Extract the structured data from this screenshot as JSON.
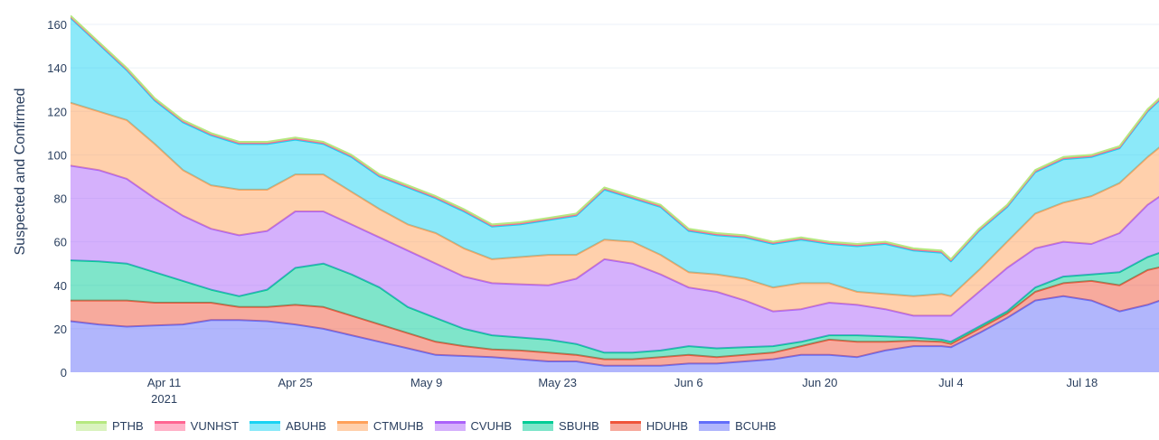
{
  "chart_data": {
    "type": "area",
    "stacked": true,
    "title": "",
    "xlabel": "",
    "ylabel": "Suspected and Confirmed",
    "ylim": [
      0,
      165
    ],
    "yticks": [
      0,
      20,
      40,
      60,
      80,
      100,
      120,
      140,
      160
    ],
    "xlim": [
      "2021-04-01",
      "2021-07-27"
    ],
    "xticks": [
      {
        "date": "2021-04-11",
        "label": "Apr 11",
        "sublabel": "2021"
      },
      {
        "date": "2021-04-25",
        "label": "Apr 25"
      },
      {
        "date": "2021-05-09",
        "label": "May 9"
      },
      {
        "date": "2021-05-23",
        "label": "May 23"
      },
      {
        "date": "2021-06-06",
        "label": "Jun 6"
      },
      {
        "date": "2021-06-20",
        "label": "Jun 20"
      },
      {
        "date": "2021-07-04",
        "label": "Jul 4"
      },
      {
        "date": "2021-07-18",
        "label": "Jul 18"
      }
    ],
    "grid": true,
    "legend_position": "bottom",
    "x": [
      "2021-04-01",
      "2021-04-04",
      "2021-04-07",
      "2021-04-10",
      "2021-04-13",
      "2021-04-16",
      "2021-04-19",
      "2021-04-22",
      "2021-04-25",
      "2021-04-28",
      "2021-05-01",
      "2021-05-04",
      "2021-05-07",
      "2021-05-10",
      "2021-05-13",
      "2021-05-16",
      "2021-05-19",
      "2021-05-22",
      "2021-05-25",
      "2021-05-28",
      "2021-05-31",
      "2021-06-03",
      "2021-06-06",
      "2021-06-09",
      "2021-06-12",
      "2021-06-15",
      "2021-06-18",
      "2021-06-21",
      "2021-06-24",
      "2021-06-27",
      "2021-06-30",
      "2021-07-03",
      "2021-07-04",
      "2021-07-07",
      "2021-07-10",
      "2021-07-13",
      "2021-07-16",
      "2021-07-19",
      "2021-07-22",
      "2021-07-25",
      "2021-07-27"
    ],
    "series": [
      {
        "name": "BCUHB",
        "color": "#636efa",
        "values": [
          23.5,
          22,
          21,
          21.5,
          22,
          24,
          24,
          23.5,
          22,
          20,
          17,
          14,
          11,
          8,
          7.5,
          7,
          6,
          5,
          5,
          3,
          3,
          3,
          4,
          4,
          5,
          6,
          8,
          8,
          7,
          10,
          12,
          12,
          11.5,
          18,
          25,
          33,
          35,
          33,
          28,
          31,
          34
        ]
      },
      {
        "name": "HDUHB",
        "color": "#EF553B",
        "values": [
          9.5,
          11,
          12,
          10.5,
          10,
          8,
          6,
          6.5,
          9,
          10,
          9,
          8,
          7,
          6,
          4.5,
          3.5,
          4,
          4,
          3,
          3,
          3,
          4,
          4,
          3,
          3,
          3,
          4,
          7,
          7,
          4,
          2.5,
          2,
          1.5,
          2,
          2,
          4,
          6,
          9,
          12,
          16,
          15
        ]
      },
      {
        "name": "SBUHB",
        "color": "#00cc96",
        "values": [
          18.5,
          18,
          17,
          14,
          10,
          6,
          5,
          8,
          17,
          20,
          19,
          17,
          12,
          11,
          8,
          6.5,
          6,
          6,
          5,
          3,
          3,
          3,
          4,
          4,
          3.5,
          3,
          2,
          2,
          3,
          2.5,
          1.5,
          1,
          1,
          1,
          1,
          2,
          3,
          3,
          6,
          6,
          7
        ]
      },
      {
        "name": "CVUHB",
        "color": "#ab63fa",
        "values": [
          43.5,
          42,
          39,
          34,
          30,
          28,
          28,
          27,
          26,
          24,
          23,
          23,
          26,
          25,
          24,
          24,
          24.5,
          25,
          30,
          43,
          41,
          35,
          27,
          26,
          21.5,
          16,
          15,
          15,
          14,
          12.5,
          10,
          11,
          12,
          16,
          20,
          18,
          16,
          14,
          18,
          24,
          27
        ]
      },
      {
        "name": "CTMUHB",
        "color": "#FFA15A",
        "values": [
          29,
          27,
          27,
          25,
          21,
          20,
          21,
          19,
          17,
          17,
          15,
          13,
          12,
          14,
          13,
          11,
          12.5,
          14,
          11,
          9,
          10,
          9,
          7,
          8,
          10,
          11,
          12,
          9,
          6,
          7,
          9,
          10,
          9,
          10,
          12,
          16,
          18,
          22,
          23,
          22,
          23
        ]
      },
      {
        "name": "ABUHB",
        "color": "#19d3f3",
        "values": [
          39,
          31,
          23,
          20,
          22,
          23,
          21,
          21,
          16,
          14,
          16,
          15,
          17,
          16,
          17,
          15,
          15,
          16,
          18,
          23,
          20,
          22,
          19,
          18,
          19,
          20,
          20,
          18,
          21,
          23,
          21,
          19,
          16,
          18,
          16,
          19,
          20,
          18,
          16,
          21,
          22
        ]
      },
      {
        "name": "VUNHST",
        "color": "#FF6692",
        "values": [
          0.5,
          0.5,
          0.5,
          0.5,
          0.5,
          0.5,
          0.5,
          0.5,
          0.5,
          0.5,
          0.5,
          0.5,
          0.5,
          0.5,
          0.5,
          0.5,
          0.5,
          0.5,
          0.5,
          0.5,
          0.5,
          0.5,
          0.5,
          0.5,
          0.5,
          0.5,
          0.5,
          0.5,
          0.5,
          0.5,
          0.5,
          0.5,
          0.5,
          0.5,
          0.5,
          0.5,
          0.5,
          0.5,
          0.5,
          0.5,
          0.5
        ]
      },
      {
        "name": "PTHB",
        "color": "#B6E880",
        "values": [
          0.5,
          0.5,
          0.5,
          0.5,
          0.5,
          0.5,
          0.5,
          0.5,
          0.5,
          0.5,
          0.5,
          0.5,
          0.5,
          0.5,
          0.5,
          0.5,
          0.5,
          0.5,
          0.5,
          0.5,
          0.5,
          0.5,
          0.5,
          0.5,
          0.5,
          0.5,
          0.5,
          0.5,
          0.5,
          0.5,
          0.5,
          0.5,
          0.5,
          0.5,
          0.5,
          0.5,
          0.5,
          0.5,
          0.5,
          0.5,
          0.5
        ]
      }
    ],
    "legend_order": [
      "PTHB",
      "VUNHST",
      "ABUHB",
      "CTMUHB",
      "CVUHB",
      "SBUHB",
      "HDUHB",
      "BCUHB"
    ]
  }
}
